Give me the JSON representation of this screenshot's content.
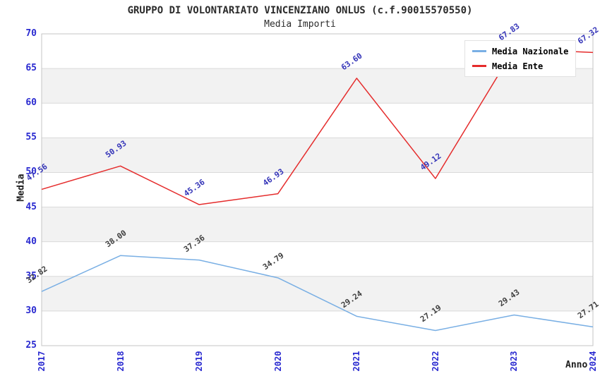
{
  "chart": {
    "title": "GRUPPO DI VOLONTARIATO VINCENZIANO ONLUS (c.f.90015570550)",
    "subtitle": "Media Importi"
  },
  "chart_data": {
    "type": "line",
    "title": "GRUPPO DI VOLONTARIATO VINCENZIANO ONLUS (c.f.90015570550)",
    "subtitle": "Media Importi",
    "xlabel": "Anno",
    "ylabel": "Media",
    "categories": [
      "2017",
      "2018",
      "2019",
      "2020",
      "2021",
      "2022",
      "2023",
      "2024"
    ],
    "series": [
      {
        "name": "Media Nazionale",
        "color": "#79afe4",
        "label_color": "#3f3f3f",
        "values": [
          32.82,
          38.0,
          37.36,
          34.79,
          29.24,
          27.19,
          29.43,
          27.71
        ]
      },
      {
        "name": "Media Ente",
        "color": "#e52c2c",
        "label_color": "#3434b8",
        "values": [
          47.56,
          50.93,
          45.36,
          46.93,
          63.6,
          49.12,
          67.83,
          67.32
        ]
      }
    ],
    "ylim": [
      25,
      70
    ],
    "ytick_step": 5,
    "yticks": [
      25,
      30,
      35,
      40,
      45,
      50,
      55,
      60,
      65,
      70
    ],
    "grid": "horizontal",
    "band_style": "alternating",
    "legend_position": "top-right",
    "colors": {
      "tick_label": "#2a2ad0",
      "band_gray": "#f2f2f2",
      "gridline": "#dadada",
      "plot_border": "#c6c6c6",
      "background": "#ffffff"
    }
  }
}
